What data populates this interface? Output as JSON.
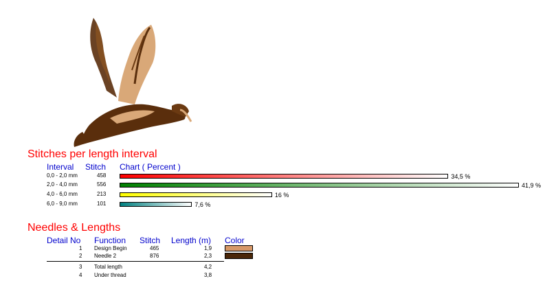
{
  "design_image": {
    "icon": "flying-bird-embroidery",
    "colors": [
      "#5a2e0c",
      "#d9a878"
    ]
  },
  "stitches_section": {
    "title": "Stitches per length interval",
    "headers": {
      "interval": "Interval",
      "stitch": "Stitch",
      "chart": "Chart ( Percent )"
    },
    "rows": [
      {
        "interval": "0,0 - 2,0 mm",
        "stitch": "458",
        "percent_label": "34,5 %",
        "percent": 34.5,
        "gradient_from": "#ff0000",
        "gradient_to": "#ffffff"
      },
      {
        "interval": "2,0 - 4,0 mm",
        "stitch": "556",
        "percent_label": "41,9 %",
        "percent": 41.9,
        "gradient_from": "#008000",
        "gradient_to": "#ffffff"
      },
      {
        "interval": "4,0 - 6,0 mm",
        "stitch": "213",
        "percent_label": "16 %",
        "percent": 16,
        "gradient_from": "#ffff00",
        "gradient_to": "#ffffff"
      },
      {
        "interval": "6,0 - 9,0 mm",
        "stitch": "101",
        "percent_label": "7,6 %",
        "percent": 7.6,
        "gradient_from": "#008080",
        "gradient_to": "#ffffff"
      }
    ]
  },
  "needles_section": {
    "title": "Needles & Lengths",
    "headers": {
      "detail_no": "Detail No",
      "function": "Function",
      "stitch": "Stitch",
      "length": "Length (m)",
      "color": "Color"
    },
    "rows": [
      {
        "no": "1",
        "function": "Design Begin",
        "stitch": "465",
        "length": "1,9",
        "color": "#d79868"
      },
      {
        "no": "2",
        "function": "Needle 2",
        "stitch": "876",
        "length": "2,3",
        "color": "#4a2608"
      }
    ],
    "totals": [
      {
        "no": "3",
        "function": "Total length",
        "length": "4,2"
      },
      {
        "no": "4",
        "function": "Under thread",
        "length": "3,8"
      }
    ]
  }
}
